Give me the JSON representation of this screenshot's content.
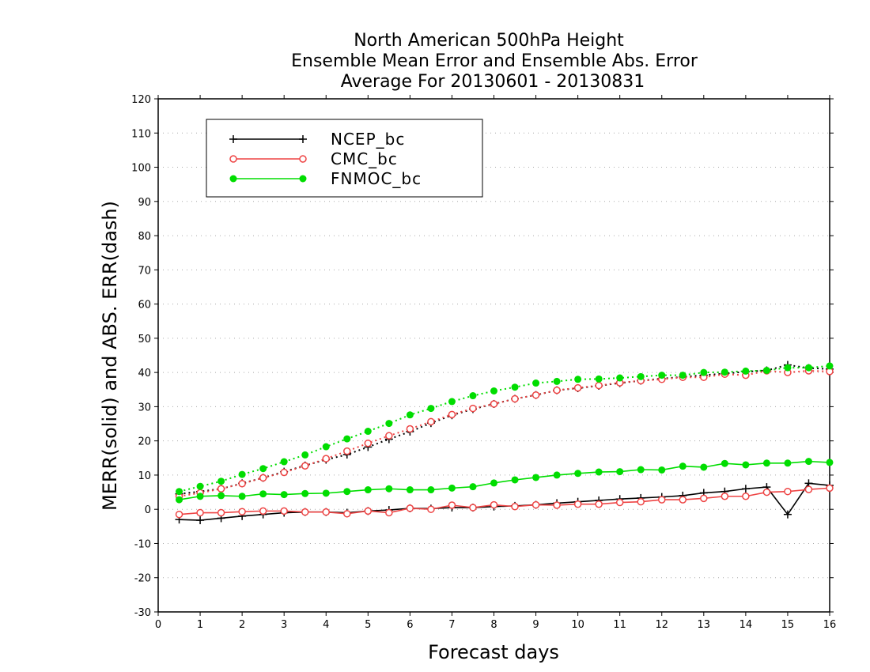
{
  "chart_data": {
    "type": "line",
    "title_lines": [
      "North American 500hPa Height",
      "Ensemble Mean Error and Ensemble Abs. Error",
      "Average For 20130601 - 20130831"
    ],
    "xlabel": "Forecast days",
    "ylabel": "MERR(solid) and ABS. ERR(dash)",
    "xlim": [
      0,
      16
    ],
    "ylim": [
      -30,
      120
    ],
    "xticks": [
      0,
      1,
      2,
      3,
      4,
      5,
      6,
      7,
      8,
      9,
      10,
      11,
      12,
      13,
      14,
      15,
      16
    ],
    "yticks": [
      -30,
      -20,
      -10,
      0,
      10,
      20,
      30,
      40,
      50,
      60,
      70,
      80,
      90,
      100,
      110,
      120
    ],
    "grid": "horizontal dotted",
    "legend_position": "top-left",
    "x": [
      0.5,
      1,
      1.5,
      2,
      2.5,
      3,
      3.5,
      4,
      4.5,
      5,
      5.5,
      6,
      6.5,
      7,
      7.5,
      8,
      8.5,
      9,
      9.5,
      10,
      10.5,
      11,
      11.5,
      12,
      12.5,
      13,
      13.5,
      14,
      14.5,
      15,
      15.5,
      16
    ],
    "series": [
      {
        "name": "NCEP_bc",
        "color": "#000000",
        "marker": "plus",
        "merr": [
          -3,
          -3.2,
          -2.6,
          -2,
          -1.5,
          -1,
          -0.8,
          -0.8,
          -1,
          -0.5,
          -0.2,
          0.3,
          0.2,
          0.5,
          0.5,
          0.8,
          1,
          1.3,
          1.8,
          2.2,
          2.6,
          3,
          3.3,
          3.6,
          4,
          4.8,
          5.2,
          6,
          6.5,
          -1.5,
          7.6,
          7
        ],
        "abs_err": [
          4.5,
          5.2,
          6,
          7.6,
          9.2,
          11,
          12.8,
          14.5,
          16,
          18.2,
          20.5,
          22.7,
          25.2,
          27.5,
          29.3,
          30.8,
          32.3,
          33.4,
          34.8,
          35.4,
          36.1,
          36.9,
          37.6,
          38.2,
          38.7,
          39.2,
          39.7,
          40.2,
          40.6,
          42.2,
          41.3,
          41
        ]
      },
      {
        "name": "CMC_bc",
        "color": "#ee4444",
        "marker": "circle-open",
        "merr": [
          -1.5,
          -1,
          -1,
          -0.7,
          -0.5,
          -0.5,
          -0.8,
          -0.8,
          -1.3,
          -0.5,
          -1,
          0.3,
          0,
          1.2,
          0.5,
          1.3,
          0.8,
          1.3,
          1.2,
          1.5,
          1.5,
          2,
          2.2,
          2.8,
          2.8,
          3.2,
          3.8,
          3.8,
          5,
          5.2,
          5.8,
          6.2
        ],
        "abs_err": [
          3.8,
          4.8,
          6,
          7.5,
          9.2,
          10.8,
          12.7,
          14.8,
          17,
          19.3,
          21.5,
          23.5,
          25.6,
          27.7,
          29.5,
          30.8,
          32.3,
          33.4,
          34.8,
          35.5,
          36.2,
          37,
          37.6,
          38,
          38.6,
          38.6,
          39.5,
          39.2,
          40.5,
          40,
          40.5,
          40.3
        ]
      },
      {
        "name": "FNMOC_bc",
        "color": "#00dd00",
        "marker": "circle-filled",
        "merr": [
          2.8,
          3.8,
          4,
          3.8,
          4.5,
          4.3,
          4.6,
          4.7,
          5.2,
          5.7,
          6,
          5.7,
          5.7,
          6.2,
          6.6,
          7.7,
          8.6,
          9.3,
          10,
          10.5,
          10.9,
          11,
          11.6,
          11.5,
          12.6,
          12.3,
          13.4,
          13,
          13.5,
          13.5,
          14,
          13.7
        ],
        "abs_err": [
          5.2,
          6.7,
          8.2,
          10.2,
          11.9,
          13.9,
          15.9,
          18.3,
          20.6,
          22.8,
          25.1,
          27.6,
          29.5,
          31.5,
          33.2,
          34.6,
          35.7,
          36.9,
          37.4,
          38,
          38.1,
          38.4,
          38.8,
          39.2,
          39.2,
          40,
          40.1,
          40.4,
          40.6,
          41.4,
          41.4,
          41.9
        ]
      }
    ]
  }
}
